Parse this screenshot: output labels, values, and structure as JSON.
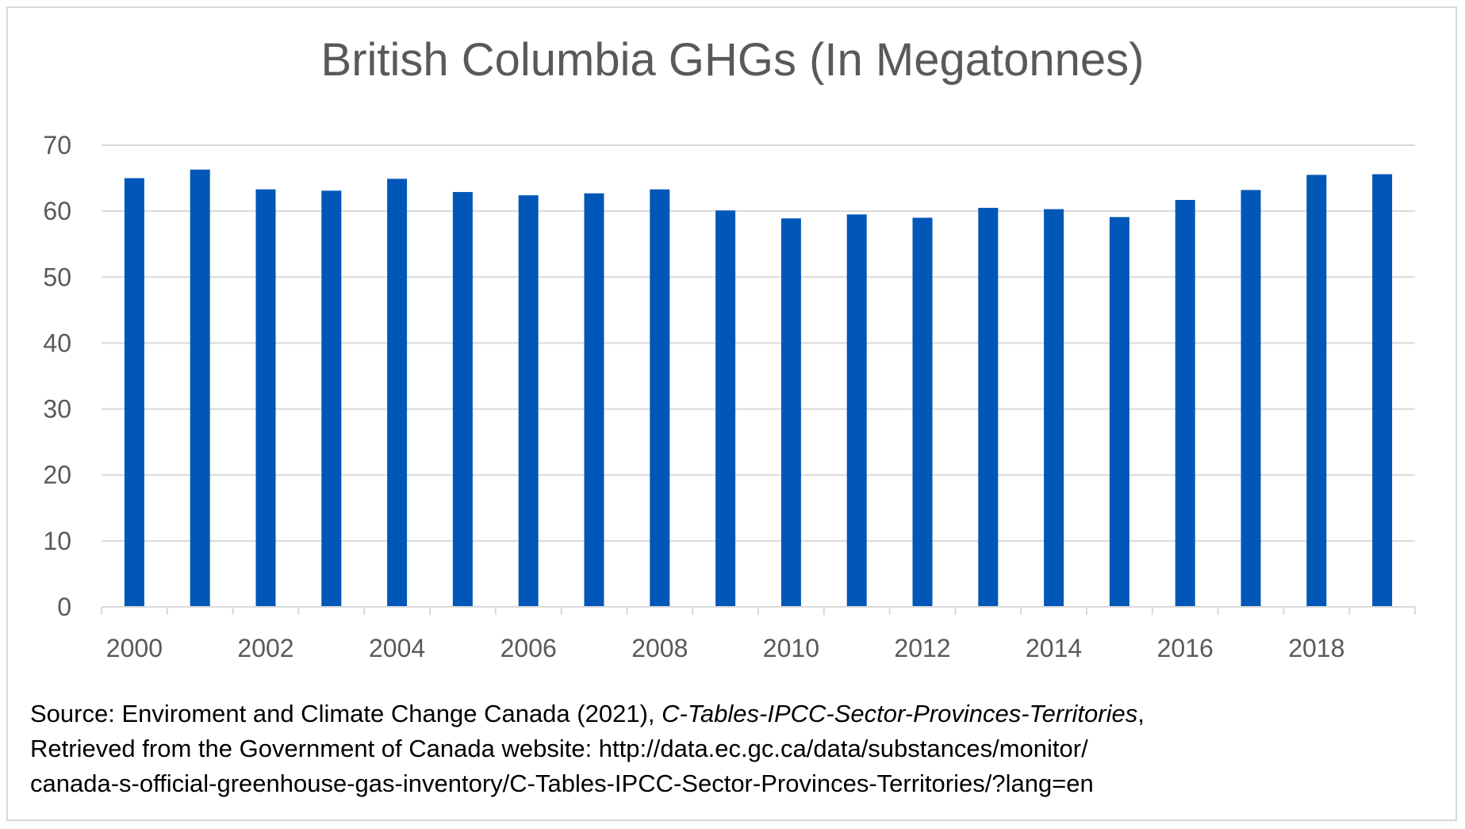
{
  "chart_data": {
    "type": "bar",
    "title": "British Columbia GHGs (In Megatonnes)",
    "categories": [
      "2000",
      "2001",
      "2002",
      "2003",
      "2004",
      "2005",
      "2006",
      "2007",
      "2008",
      "2009",
      "2010",
      "2011",
      "2012",
      "2013",
      "2014",
      "2015",
      "2016",
      "2017",
      "2018",
      "2019"
    ],
    "values": [
      65.0,
      66.3,
      63.3,
      63.1,
      64.9,
      62.9,
      62.4,
      62.7,
      63.3,
      60.1,
      58.9,
      59.5,
      59.0,
      60.5,
      60.3,
      59.1,
      61.7,
      63.2,
      65.5,
      65.6
    ],
    "x_tick_labels": [
      "2000",
      "2002",
      "2004",
      "2006",
      "2008",
      "2010",
      "2012",
      "2014",
      "2016",
      "2018"
    ],
    "y_ticks": [
      "0",
      "10",
      "20",
      "30",
      "40",
      "50",
      "60",
      "70"
    ],
    "ylim": [
      0,
      70
    ],
    "xlabel": "",
    "ylabel": "",
    "grid": true,
    "bar_color": "#0057b8",
    "grid_color": "#d9d9d9",
    "axis_text_color": "#595959"
  },
  "source": {
    "prefix": "Source:  Enviroment and Climate Change Canada (2021),  ",
    "table_name": "C-Tables-IPCC-Sector-Provinces-Territories",
    "suffix": ",",
    "line2": "Retrieved from the Government of Canada website: http://data.ec.gc.ca/data/substances/monitor/",
    "line3": "canada-s-official-greenhouse-gas-inventory/C-Tables-IPCC-Sector-Provinces-Territories/?lang=en"
  }
}
